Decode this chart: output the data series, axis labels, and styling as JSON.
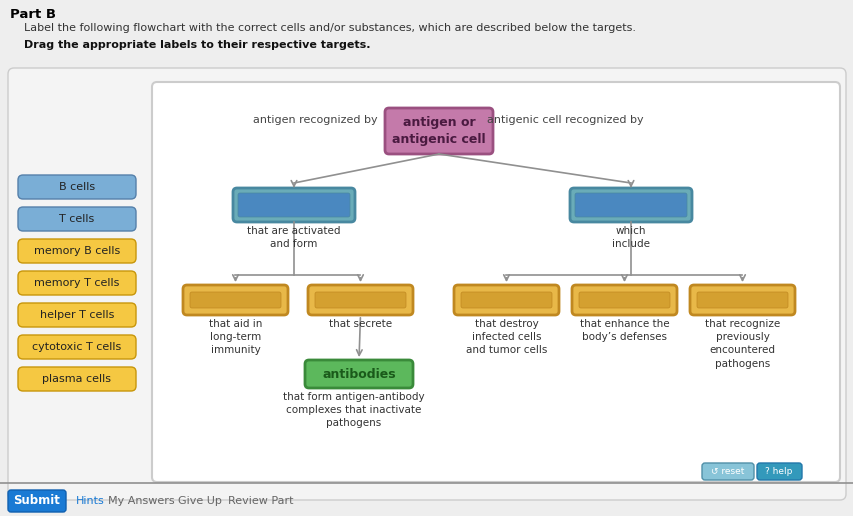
{
  "title": "Part B",
  "subtitle": "Label the following flowchart with the correct cells and/or substances, which are described below the targets.",
  "bold_instruction": "Drag the appropriate labels to their respective targets.",
  "sidebar_labels": [
    "B cells",
    "T cells",
    "memory B cells",
    "memory T cells",
    "helper T cells",
    "cytotoxic T cells",
    "plasma cells"
  ],
  "sidebar_blue_color": "#7aaed6",
  "sidebar_yellow_color": "#f5c842",
  "sidebar_blue_edge": "#5580aa",
  "sidebar_yellow_edge": "#c8960a",
  "center_box_label": "antigen or\nantigenic cell",
  "center_box_color": "#c47aaa",
  "center_box_edge": "#9a5080",
  "center_box_text_color": "#4a1a40",
  "teal_box_color": "#6aacb8",
  "teal_box_edge": "#4888a0",
  "teal_inner_color": "#4a88c0",
  "yellow_box_color": "#e8b848",
  "yellow_box_edge": "#c08820",
  "yellow_inner_color": "#d4a030",
  "antibodies_color": "#5cb85c",
  "antibodies_edge": "#3a8a3a",
  "antibodies_text_color": "#1a5a1a",
  "left_text_above": "antigen recognized by",
  "right_text_above": "antigenic cell recognized by",
  "left_teal_below": "that are activated\nand form",
  "right_teal_below": "which\ninclude",
  "yellow_labels": [
    "that aid in\nlong-term\nimmunity",
    "that secrete",
    "that destroy\ninfected cells\nand tumor cells",
    "that enhance the\nbody’s defenses",
    "that recognize\npreviously\nencountered\npathogens"
  ],
  "antibodies_label": "antibodies",
  "antibodies_below": "that form antigen-antibody\ncomplexes that inactivate\npathogens",
  "arrow_color": "#909090",
  "line_color": "#909090",
  "outer_bg": "#eeeeee",
  "panel_bg": "#f4f4f4",
  "inner_bg": "#ffffff",
  "panel_edge": "#cccccc",
  "reset_color": "#88c4d8",
  "help_color": "#3399bb",
  "submit_color": "#1a7ad4",
  "hints_color": "#1a7ad4",
  "link_color": "#666666"
}
